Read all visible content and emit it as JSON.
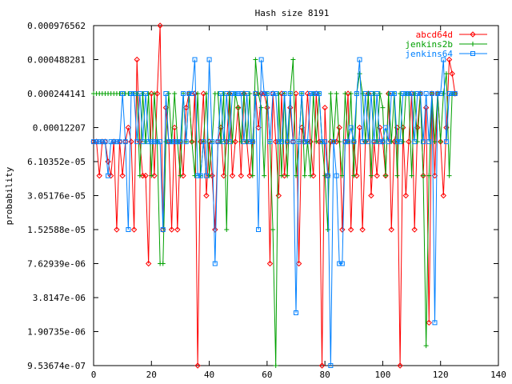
{
  "chart_data": {
    "type": "line",
    "title": "Hash size 8191",
    "xlabel": "",
    "ylabel": "probability",
    "x_axis": {
      "min": 0,
      "max": 140,
      "ticks": [
        0,
        20,
        40,
        60,
        80,
        100,
        120,
        140
      ]
    },
    "y_axis": {
      "scale": "log2",
      "min": 9.53674e-07,
      "max": 0.000976562,
      "tick_values": [
        9.53674e-07,
        1.90735e-06,
        3.8147e-06,
        7.62939e-06,
        1.52588e-05,
        3.05176e-05,
        6.10352e-05,
        0.00012207,
        0.000244141,
        0.000488281,
        0.000976562
      ],
      "tick_labels": [
        "9.53674e-07",
        "1.90735e-06",
        "3.8147e-06",
        "7.62939e-06",
        "1.52588e-05",
        "3.05176e-05",
        "6.10352e-05",
        "0.00012207",
        "0.000244141",
        "0.000488281",
        "0.000976562"
      ]
    },
    "grid": false,
    "legend_position": "top-right",
    "series": [
      {
        "name": "abcd64d",
        "color": "#ff0000",
        "marker": "diamond",
        "x": [
          0,
          1,
          2,
          3,
          4,
          5,
          6,
          7,
          8,
          9,
          10,
          11,
          12,
          13,
          14,
          15,
          16,
          17,
          18,
          19,
          20,
          21,
          22,
          23,
          24,
          25,
          26,
          27,
          28,
          29,
          30,
          31,
          32,
          33,
          34,
          35,
          36,
          37,
          38,
          39,
          40,
          41,
          42,
          43,
          44,
          45,
          46,
          47,
          48,
          49,
          50,
          51,
          52,
          53,
          54,
          55,
          56,
          57,
          58,
          59,
          60,
          61,
          62,
          63,
          64,
          65,
          66,
          67,
          68,
          69,
          70,
          71,
          72,
          73,
          74,
          75,
          76,
          77,
          78,
          79,
          80,
          81,
          82,
          83,
          84,
          85,
          86,
          87,
          88,
          89,
          90,
          91,
          92,
          93,
          94,
          95,
          96,
          97,
          98,
          99,
          100,
          101,
          102,
          103,
          104,
          105,
          106,
          107,
          108,
          109,
          110,
          111,
          112,
          113,
          114,
          115,
          116,
          117,
          118,
          119,
          120,
          121,
          122,
          123,
          124,
          125
        ],
        "y": [
          9.15527e-05,
          9.15527e-05,
          4.57764e-05,
          9.15527e-05,
          9.15527e-05,
          6.10352e-05,
          4.57764e-05,
          9.15527e-05,
          1.52588e-05,
          9.15527e-05,
          4.57764e-05,
          9.15527e-05,
          0.00012207,
          9.15527e-05,
          1.52588e-05,
          0.000488281,
          9.15527e-05,
          4.57764e-05,
          4.57764e-05,
          7.62939e-06,
          0.000244141,
          4.57764e-05,
          0.000244141,
          0.000976562,
          1.52588e-05,
          0.000183105,
          9.15527e-05,
          1.52588e-05,
          0.00012207,
          1.52588e-05,
          9.15527e-05,
          4.57764e-05,
          0.000183105,
          0.000244141,
          9.15527e-05,
          0.000244141,
          9.53674e-07,
          9.15527e-05,
          0.000244141,
          3.05176e-05,
          9.15527e-05,
          4.57764e-05,
          1.52588e-05,
          9.15527e-05,
          0.00012207,
          4.57764e-05,
          9.15527e-05,
          0.000244141,
          4.57764e-05,
          9.15527e-05,
          0.000183105,
          4.57764e-05,
          0.000244141,
          9.15527e-05,
          4.57764e-05,
          9.15527e-05,
          0.000244141,
          0.00012207,
          0.000244141,
          0.000244141,
          0.000183105,
          7.62939e-06,
          0.000244141,
          9.15527e-05,
          3.05176e-05,
          0.000244141,
          4.57764e-05,
          9.15527e-05,
          0.000183105,
          9.15527e-05,
          0.000244141,
          7.62939e-06,
          0.00012207,
          9.15527e-05,
          0.000244141,
          9.15527e-05,
          4.57764e-05,
          0.000244141,
          9.15527e-05,
          9.53674e-07,
          0.000183105,
          4.57764e-05,
          9.15527e-05,
          9.15527e-05,
          9.15527e-05,
          0.00012207,
          1.52588e-05,
          9.15527e-05,
          0.000244141,
          1.52588e-05,
          9.15527e-05,
          4.57764e-05,
          0.00012207,
          1.52588e-05,
          9.15527e-05,
          0.000244141,
          3.05176e-05,
          9.15527e-05,
          4.57764e-05,
          0.00012207,
          9.15527e-05,
          4.57764e-05,
          0.000244141,
          1.52588e-05,
          9.15527e-05,
          0.00012207,
          9.53674e-07,
          0.00012207,
          3.05176e-05,
          9.15527e-05,
          0.000244141,
          1.52588e-05,
          0.00012207,
          0.000244141,
          4.57764e-05,
          0.000183105,
          2.28882e-06,
          0.000244141,
          4.57764e-05,
          0.000244141,
          9.15527e-05,
          3.05176e-05,
          0.00012207,
          0.000488281,
          0.000366211,
          0.000244141
        ]
      },
      {
        "name": "jenkins2b",
        "color": "#00a000",
        "marker": "plus",
        "x": [
          0,
          1,
          2,
          3,
          4,
          5,
          6,
          7,
          8,
          9,
          10,
          11,
          12,
          13,
          14,
          15,
          16,
          17,
          18,
          19,
          20,
          21,
          22,
          23,
          24,
          25,
          26,
          27,
          28,
          29,
          30,
          31,
          32,
          33,
          34,
          35,
          36,
          37,
          38,
          39,
          40,
          41,
          42,
          43,
          44,
          45,
          46,
          47,
          48,
          49,
          50,
          51,
          52,
          53,
          54,
          55,
          56,
          57,
          58,
          59,
          60,
          61,
          62,
          63,
          64,
          65,
          66,
          67,
          68,
          69,
          70,
          71,
          72,
          73,
          74,
          75,
          76,
          77,
          78,
          79,
          80,
          81,
          82,
          83,
          84,
          85,
          86,
          87,
          88,
          89,
          90,
          91,
          92,
          93,
          94,
          95,
          96,
          97,
          98,
          99,
          100,
          101,
          102,
          103,
          104,
          105,
          106,
          107,
          108,
          109,
          110,
          111,
          112,
          113,
          114,
          115,
          116,
          117,
          118,
          119,
          120,
          121,
          122,
          123,
          124,
          125
        ],
        "y": [
          0.000244141,
          0.000244141,
          0.000244141,
          0.000244141,
          0.000244141,
          0.000244141,
          0.000244141,
          0.000244141,
          0.000244141,
          0.000244141,
          0.000244141,
          0.000244141,
          0.000244141,
          0.000244141,
          0.000244141,
          0.000244141,
          4.57764e-05,
          0.000244141,
          9.15527e-05,
          0.000244141,
          4.57764e-05,
          0.000244141,
          9.15527e-05,
          7.62939e-06,
          7.62939e-06,
          9.15527e-05,
          0.000244141,
          9.15527e-05,
          0.000244141,
          9.15527e-05,
          4.57764e-05,
          0.000244141,
          9.15527e-05,
          0.000244141,
          9.15527e-05,
          4.57764e-05,
          0.000244141,
          4.57764e-05,
          9.15527e-05,
          0.000244141,
          4.57764e-05,
          9.15527e-05,
          0.000244141,
          0.000244141,
          9.15527e-05,
          0.000244141,
          1.52588e-05,
          0.000244141,
          9.15527e-05,
          0.000244141,
          0.000183105,
          9.15527e-05,
          0.000244141,
          9.15527e-05,
          0.000244141,
          4.57764e-05,
          0.000488281,
          0.000244141,
          0.000183105,
          4.57764e-05,
          0.000244141,
          9.15527e-05,
          1.52588e-05,
          9.53674e-07,
          0.000244141,
          4.57764e-05,
          0.000244141,
          4.57764e-05,
          0.000244141,
          0.000488281,
          4.57764e-05,
          9.15527e-05,
          0.000244141,
          4.57764e-05,
          9.15527e-05,
          4.57764e-05,
          0.000244141,
          9.15527e-05,
          0.000244141,
          9.15527e-05,
          4.57764e-05,
          1.52588e-05,
          0.000244141,
          9.15527e-05,
          0.000244141,
          9.15527e-05,
          4.57764e-05,
          0.000244141,
          9.15527e-05,
          0.000244141,
          4.57764e-05,
          0.000244141,
          0.000366211,
          0.000244141,
          9.15527e-05,
          0.000244141,
          4.57764e-05,
          0.000244141,
          9.15527e-05,
          0.000244141,
          0.000183105,
          4.57764e-05,
          0.000244141,
          9.15527e-05,
          0.000244141,
          4.57764e-05,
          0.000244141,
          9.15527e-05,
          0.000244141,
          0.000244141,
          4.57764e-05,
          0.000244141,
          9.15527e-05,
          0.000244141,
          4.57764e-05,
          1.43051e-06,
          4.57764e-05,
          0.000244141,
          9.15527e-05,
          0.000244141,
          9.15527e-05,
          0.000244141,
          0.000366211,
          4.57764e-05,
          0.000244141,
          0.000244141
        ]
      },
      {
        "name": "jenkins64",
        "color": "#0080ff",
        "marker": "square",
        "x": [
          0,
          1,
          2,
          3,
          4,
          5,
          6,
          7,
          8,
          9,
          10,
          11,
          12,
          13,
          14,
          15,
          16,
          17,
          18,
          19,
          20,
          21,
          22,
          23,
          24,
          25,
          26,
          27,
          28,
          29,
          30,
          31,
          32,
          33,
          34,
          35,
          36,
          37,
          38,
          39,
          40,
          41,
          42,
          43,
          44,
          45,
          46,
          47,
          48,
          49,
          50,
          51,
          52,
          53,
          54,
          55,
          56,
          57,
          58,
          59,
          60,
          61,
          62,
          63,
          64,
          65,
          66,
          67,
          68,
          69,
          70,
          71,
          72,
          73,
          74,
          75,
          76,
          77,
          78,
          79,
          80,
          81,
          82,
          83,
          84,
          85,
          86,
          87,
          88,
          89,
          90,
          91,
          92,
          93,
          94,
          95,
          96,
          97,
          98,
          99,
          100,
          101,
          102,
          103,
          104,
          105,
          106,
          107,
          108,
          109,
          110,
          111,
          112,
          113,
          114,
          115,
          116,
          117,
          118,
          119,
          120,
          121,
          122,
          123,
          124,
          125
        ],
        "y": [
          9.15527e-05,
          9.15527e-05,
          9.15527e-05,
          9.15527e-05,
          9.15527e-05,
          4.57764e-05,
          9.15527e-05,
          9.15527e-05,
          9.15527e-05,
          9.15527e-05,
          0.000244141,
          9.15527e-05,
          1.52588e-05,
          0.000244141,
          0.000244141,
          9.15527e-05,
          0.000244141,
          9.15527e-05,
          0.000244141,
          9.15527e-05,
          9.15527e-05,
          9.15527e-05,
          9.15527e-05,
          9.15527e-05,
          1.52588e-05,
          0.000244141,
          9.15527e-05,
          9.15527e-05,
          9.15527e-05,
          9.15527e-05,
          9.15527e-05,
          0.000244141,
          9.15527e-05,
          0.000244141,
          0.000244141,
          0.000488281,
          4.57764e-05,
          4.57764e-05,
          9.15527e-05,
          4.57764e-05,
          0.000488281,
          9.15527e-05,
          7.62939e-06,
          9.15527e-05,
          0.000244141,
          9.15527e-05,
          0.000244141,
          9.15527e-05,
          0.000244141,
          0.000244141,
          0.000244141,
          0.000244141,
          9.15527e-05,
          0.000244141,
          9.15527e-05,
          9.15527e-05,
          0.000244141,
          1.52588e-05,
          0.000488281,
          0.000244141,
          0.000244141,
          9.15527e-05,
          0.000244141,
          0.000244141,
          9.15527e-05,
          9.15527e-05,
          0.000244141,
          9.15527e-05,
          0.000244141,
          9.15527e-05,
          2.8e-06,
          9.15527e-05,
          0.000244141,
          9.15527e-05,
          9.15527e-05,
          0.000244141,
          0.000244141,
          0.000244141,
          0.000244141,
          9.15527e-05,
          9.15527e-05,
          4.57764e-05,
          9.53674e-07,
          9.15527e-05,
          4.57764e-05,
          7.62939e-06,
          7.62939e-06,
          9.15527e-05,
          9.15527e-05,
          0.00012207,
          9.15527e-05,
          0.000244141,
          0.000488281,
          9.15527e-05,
          0.000244141,
          9.15527e-05,
          0.000244141,
          9.15527e-05,
          0.000244141,
          9.15527e-05,
          9.15527e-05,
          0.00012207,
          9.15527e-05,
          0.000244141,
          0.000244141,
          9.15527e-05,
          9.15527e-05,
          0.000244141,
          0.000244141,
          0.000244141,
          0.000244141,
          9.15527e-05,
          0.000244141,
          0.000244141,
          9.15527e-05,
          0.000244141,
          9.15527e-05,
          0.000244141,
          2.28882e-06,
          0.000244141,
          0.000244141,
          0.000488281,
          9.15527e-05,
          0.000244141,
          0.000244141,
          0.000244141
        ]
      }
    ]
  }
}
